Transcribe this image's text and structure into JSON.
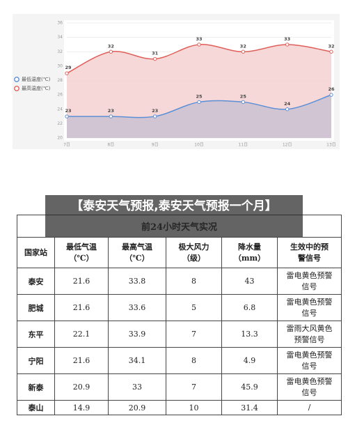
{
  "chart_data": {
    "type": "area",
    "categories": [
      "7日",
      "8日",
      "9日",
      "10日",
      "11日",
      "12日",
      "13日"
    ],
    "series": [
      {
        "name": "最低温度(℃)",
        "color": "#5b8fd6",
        "fill": "#cdc3d3",
        "values": [
          23,
          23,
          23,
          25,
          25,
          24,
          26
        ]
      },
      {
        "name": "最高温度(℃)",
        "color": "#df5f5a",
        "fill": "#f6d4d4",
        "values": [
          29,
          32,
          31,
          33,
          32,
          33,
          32
        ]
      }
    ],
    "ylim": [
      20,
      36
    ],
    "yticks": [
      20,
      22,
      24,
      26,
      28,
      30,
      32,
      34,
      36
    ],
    "grid": true,
    "legend": "left"
  },
  "banner": {
    "title": "【泰安天气预报,泰安天气预报一个月】"
  },
  "table": {
    "caption": "前24小时天气实况",
    "header": [
      [
        "国家站"
      ],
      [
        "最低气温",
        "（℃）"
      ],
      [
        "最高气温",
        "（℃）"
      ],
      [
        "极大风力",
        "（级）"
      ],
      [
        "降水量",
        "（mm）"
      ],
      [
        "生效中的预",
        "警信号"
      ]
    ],
    "rows": [
      [
        "泰安",
        21.6,
        33.8,
        8,
        43,
        "雷电黄色预警信号"
      ],
      [
        "肥城",
        21.6,
        33.6,
        5,
        6.8,
        "雷电黄色预警信号"
      ],
      [
        "东平",
        22.1,
        33.9,
        7,
        13.3,
        "雷雨大风黄色预警信号"
      ],
      [
        "宁阳",
        21.6,
        34.1,
        8,
        4.9,
        "雷电黄色预警信号"
      ],
      [
        "新泰",
        20.9,
        33,
        7,
        45.9,
        "雷电黄色预警信号"
      ],
      [
        "泰山",
        14.9,
        20.9,
        10,
        31.4,
        "/"
      ]
    ]
  }
}
